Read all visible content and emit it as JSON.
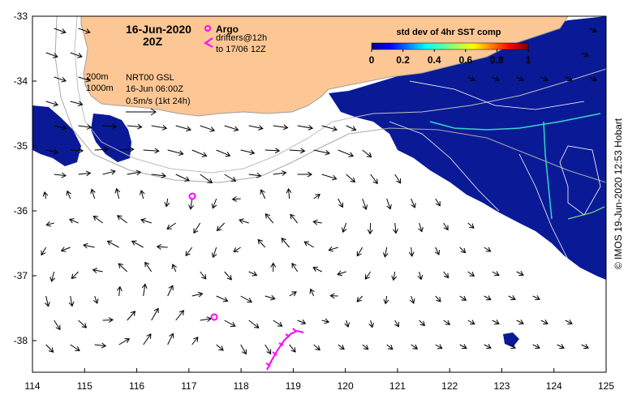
{
  "map": {
    "date": "16-Jun-2020",
    "hour": "20Z",
    "legend": {
      "argo_label": "Argo",
      "drifters_line1": "drifters@12h",
      "drifters_line2": "to 17/06 12Z",
      "argo_color": "#ff00ff"
    },
    "isobaths": {
      "shallow": "200m",
      "deep": "1000m"
    },
    "source": {
      "line1": "NRT00 GSL",
      "line2": "16-Jun 06:00Z",
      "scale": "0.5m/s (1kt 24h)"
    },
    "colorbar": {
      "title": "std dev of 4hr SST comp",
      "ticks": [
        "0",
        "0.2",
        "0.4",
        "0.6",
        "0.8",
        "1"
      ]
    },
    "axes": {
      "x_ticks": [
        "114",
        "115",
        "116",
        "117",
        "118",
        "119",
        "120",
        "121",
        "122",
        "123",
        "124",
        "125"
      ],
      "y_ticks": [
        "-33",
        "-34",
        "-35",
        "-36",
        "-37",
        "-38"
      ]
    },
    "credit": "© IMOS 19-Jun-2020 12:53 Hobart",
    "colors": {
      "land": "#fcc795",
      "sst_field": "#0a1a96",
      "contour": "#d9d9d9"
    }
  }
}
